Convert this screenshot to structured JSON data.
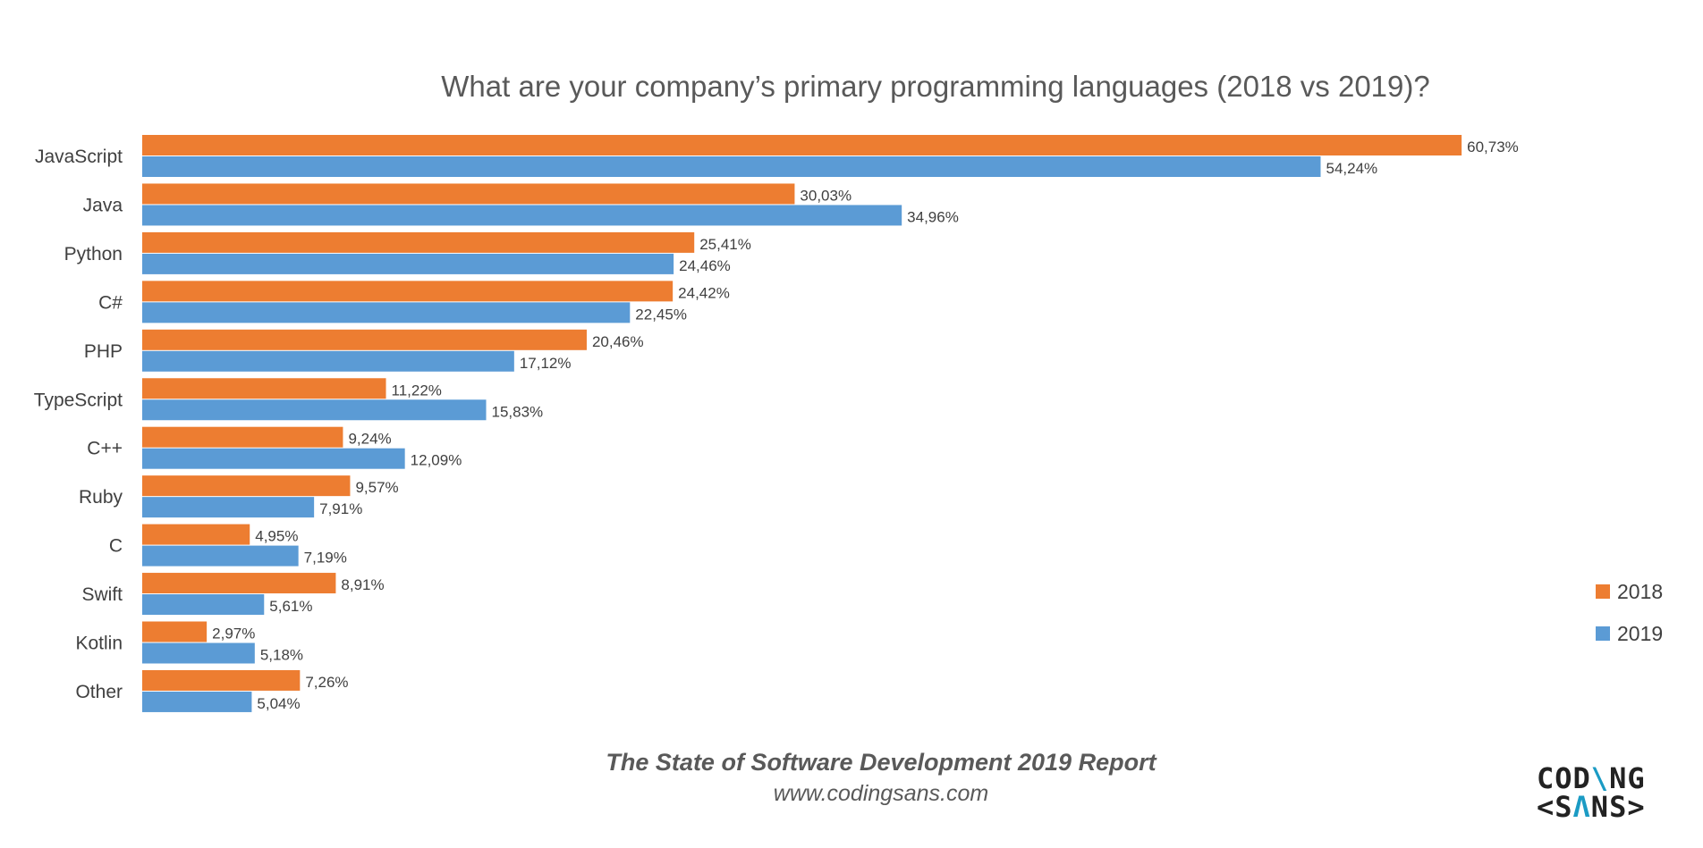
{
  "chart_data": {
    "type": "bar",
    "orientation": "horizontal",
    "title": "What are your company’s primary programming languages (2018 vs 2019)?",
    "categories": [
      "JavaScript",
      "Java",
      "Python",
      "C#",
      "PHP",
      "TypeScript",
      "C++",
      "Ruby",
      "C",
      "Swift",
      "Kotlin",
      "Other"
    ],
    "series": [
      {
        "name": "2018",
        "color": "#ED7D31",
        "values": [
          60.73,
          30.03,
          25.41,
          24.42,
          20.46,
          11.22,
          9.24,
          9.57,
          4.95,
          8.91,
          2.97,
          7.26
        ],
        "labels": [
          "60,73%",
          "30,03%",
          "25,41%",
          "24,42%",
          "20,46%",
          "11,22%",
          "9,24%",
          "9,57%",
          "4,95%",
          "8,91%",
          "2,97%",
          "7,26%"
        ]
      },
      {
        "name": "2019",
        "color": "#5B9BD5",
        "values": [
          54.24,
          34.96,
          24.46,
          22.45,
          17.12,
          15.83,
          12.09,
          7.91,
          7.19,
          5.61,
          5.18,
          5.04
        ],
        "labels": [
          "54,24%",
          "34,96%",
          "24,46%",
          "22,45%",
          "17,12%",
          "15,83%",
          "12,09%",
          "7,91%",
          "7,19%",
          "5,61%",
          "5,18%",
          "5,04%"
        ]
      }
    ],
    "legend": "right",
    "grid": false,
    "xlim": [
      0,
      62
    ]
  },
  "footer": {
    "report": "The State of Software Development 2019 Report",
    "website": "www.codingsans.com"
  },
  "logo": {
    "line1": "CODINGSANS",
    "text": "CODING <SANS>"
  }
}
